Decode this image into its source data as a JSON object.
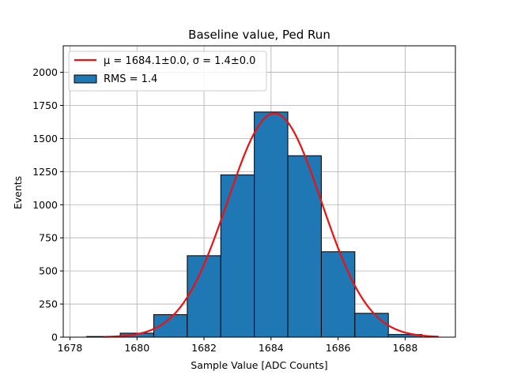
{
  "chart_data": {
    "type": "bar",
    "title": "Baseline value, Ped Run",
    "xlabel": "Sample Value [ADC Counts]",
    "ylabel": "Events",
    "xlim": [
      1677.8,
      1689.5
    ],
    "ylim": [
      0,
      2200
    ],
    "xticks": [
      1678,
      1680,
      1682,
      1684,
      1686,
      1688
    ],
    "yticks": [
      0,
      250,
      500,
      750,
      1000,
      1250,
      1500,
      1750,
      2000
    ],
    "grid": true,
    "legend_position": "top-left",
    "bar_color": "#1f77b4",
    "fit_color": "#ee1111",
    "histogram": {
      "name": "RMS = 1.4",
      "bin_edges": [
        1678.5,
        1679.5,
        1680.5,
        1681.5,
        1682.5,
        1683.5,
        1684.5,
        1685.5,
        1686.5,
        1687.5,
        1688.5
      ],
      "values": [
        5,
        30,
        170,
        615,
        1225,
        1700,
        1370,
        645,
        180,
        20
      ]
    },
    "fit": {
      "name": "μ = 1684.1±0.0, σ = 1.4±0.0",
      "mu": 1684.1,
      "sigma": 1.4,
      "amplitude": 1690,
      "x_range": [
        1679,
        1689
      ]
    }
  }
}
